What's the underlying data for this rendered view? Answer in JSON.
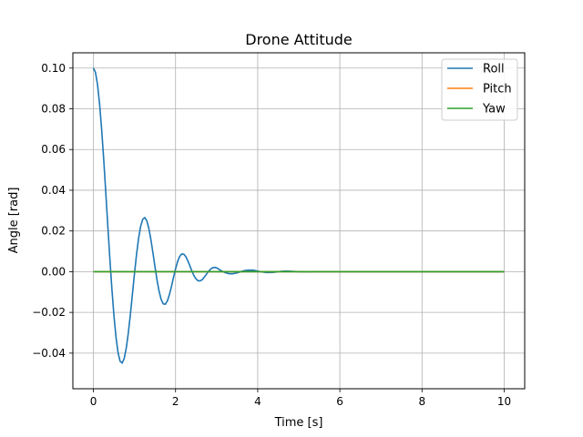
{
  "chart_data": {
    "type": "line",
    "title": "Drone Attitude",
    "xlabel": "Time [s]",
    "ylabel": "Angle [rad]",
    "xlim": [
      -0.5,
      10.5
    ],
    "ylim": [
      -0.0575,
      0.1075
    ],
    "x_ticks": [
      0,
      2,
      4,
      6,
      8,
      10
    ],
    "x_tick_labels": [
      "0",
      "2",
      "4",
      "6",
      "8",
      "10"
    ],
    "y_ticks": [
      -0.04,
      -0.02,
      0.0,
      0.02,
      0.04,
      0.06,
      0.08,
      0.1
    ],
    "y_tick_labels": [
      "−0.04",
      "−0.02",
      "0.00",
      "0.02",
      "0.04",
      "0.06",
      "0.08",
      "0.10"
    ],
    "grid": true,
    "legend_position": "top-right",
    "series": [
      {
        "name": "Roll",
        "color": "#1f77b4",
        "x": [
          0,
          0.05,
          0.1,
          0.15,
          0.2,
          0.25,
          0.3,
          0.35,
          0.4,
          0.45,
          0.5,
          0.55,
          0.6,
          0.65,
          0.7,
          0.75,
          0.8,
          0.85,
          0.9,
          0.95,
          1.0,
          1.05,
          1.1,
          1.15,
          1.2,
          1.25,
          1.3,
          1.35,
          1.4,
          1.45,
          1.5,
          1.55,
          1.6,
          1.65,
          1.7,
          1.75,
          1.8,
          1.85,
          1.9,
          1.95,
          2.0,
          2.05,
          2.1,
          2.15,
          2.2,
          2.25,
          2.3,
          2.35,
          2.4,
          2.45,
          2.5,
          2.55,
          2.6,
          2.65,
          2.7,
          2.75,
          2.8,
          2.85,
          2.9,
          2.95,
          3.0,
          3.1,
          3.2,
          3.3,
          3.4,
          3.5,
          3.6,
          3.7,
          3.8,
          3.9,
          4.0,
          4.1,
          4.2,
          4.3,
          4.4,
          4.5,
          4.6,
          4.7,
          4.8,
          4.9,
          5.0,
          5.2,
          5.4,
          5.6,
          5.8,
          6.0,
          6.2,
          6.4,
          6.6,
          6.8,
          7.0,
          7.5,
          8.0,
          8.5,
          9.0,
          9.5,
          10.0
        ],
        "values": [
          0.1,
          0.0979,
          0.0919,
          0.0824,
          0.07,
          0.0554,
          0.0393,
          0.0227,
          0.0065,
          -0.0085,
          -0.0216,
          -0.0322,
          -0.0398,
          -0.044,
          -0.0449,
          -0.0426,
          -0.0375,
          -0.0301,
          -0.021,
          -0.011,
          -0.0009,
          0.0085,
          0.0164,
          0.0223,
          0.0257,
          0.0266,
          0.025,
          0.0212,
          0.0157,
          0.0091,
          0.0023,
          -0.0043,
          -0.0097,
          -0.0137,
          -0.0158,
          -0.016,
          -0.0144,
          -0.0113,
          -0.0073,
          -0.0028,
          0.0014,
          0.005,
          0.0075,
          0.0087,
          0.0086,
          0.0074,
          0.0053,
          0.0028,
          0.0002,
          -0.0021,
          -0.0036,
          -0.0045,
          -0.0045,
          -0.0039,
          -0.0027,
          -0.0013,
          0.0001,
          0.0012,
          0.0019,
          0.0021,
          0.0019,
          0.0006,
          -0.0004,
          -0.001,
          -0.001,
          -0.0006,
          0.0001,
          0.0006,
          0.0008,
          0.0007,
          0.0003,
          -0.0001,
          -0.0004,
          -0.0004,
          -0.0003,
          0.0,
          0.0002,
          0.0003,
          0.0002,
          0.0001,
          0.0,
          -0.0001,
          0.0,
          0.0,
          0.0,
          0.0,
          0.0,
          0.0,
          0.0,
          0.0,
          0.0,
          0.0,
          0.0,
          0.0,
          0.0,
          0.0,
          0.0
        ]
      },
      {
        "name": "Pitch",
        "color": "#ff7f0e",
        "x": [
          0,
          10
        ],
        "values": [
          0.0,
          0.0
        ]
      },
      {
        "name": "Yaw",
        "color": "#2ca02c",
        "x": [
          0,
          10
        ],
        "values": [
          0.0,
          0.0
        ]
      }
    ]
  }
}
